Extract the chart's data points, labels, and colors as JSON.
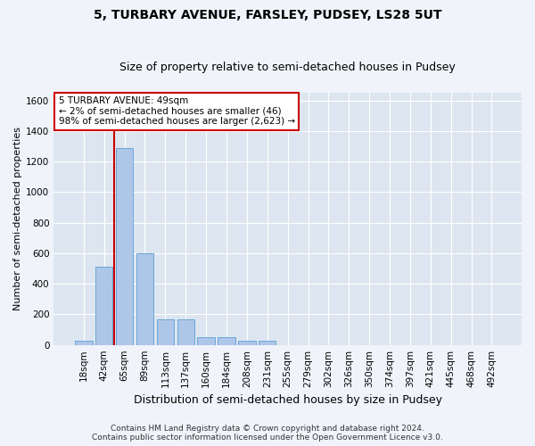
{
  "title": "5, TURBARY AVENUE, FARSLEY, PUDSEY, LS28 5UT",
  "subtitle": "Size of property relative to semi-detached houses in Pudsey",
  "xlabel": "Distribution of semi-detached houses by size in Pudsey",
  "ylabel": "Number of semi-detached properties",
  "annotation_line1": "5 TURBARY AVENUE: 49sqm",
  "annotation_line2": "← 2% of semi-detached houses are smaller (46)",
  "annotation_line3": "98% of semi-detached houses are larger (2,623) →",
  "footer1": "Contains HM Land Registry data © Crown copyright and database right 2024.",
  "footer2": "Contains public sector information licensed under the Open Government Licence v3.0.",
  "bins": [
    "18sqm",
    "42sqm",
    "65sqm",
    "89sqm",
    "113sqm",
    "137sqm",
    "160sqm",
    "184sqm",
    "208sqm",
    "231sqm",
    "255sqm",
    "279sqm",
    "302sqm",
    "326sqm",
    "350sqm",
    "374sqm",
    "397sqm",
    "421sqm",
    "445sqm",
    "468sqm",
    "492sqm"
  ],
  "values": [
    30,
    510,
    1290,
    600,
    170,
    170,
    50,
    50,
    25,
    25,
    0,
    0,
    0,
    0,
    0,
    0,
    0,
    0,
    0,
    0,
    0
  ],
  "bar_color": "#aec6e8",
  "bar_edge_color": "#5a9fd4",
  "red_line_x": 1.5,
  "highlight_color": "#cc0000",
  "ylim": [
    0,
    1650
  ],
  "yticks": [
    0,
    200,
    400,
    600,
    800,
    1000,
    1200,
    1400,
    1600
  ],
  "bg_color": "#dde6f0",
  "grid_color": "#ffffff",
  "fig_bg_color": "#f0f4fa",
  "annotation_box_color": "#cc0000",
  "title_fontsize": 10,
  "subtitle_fontsize": 9,
  "ylabel_fontsize": 8,
  "xlabel_fontsize": 9,
  "tick_fontsize": 7.5,
  "footer_fontsize": 6.5
}
